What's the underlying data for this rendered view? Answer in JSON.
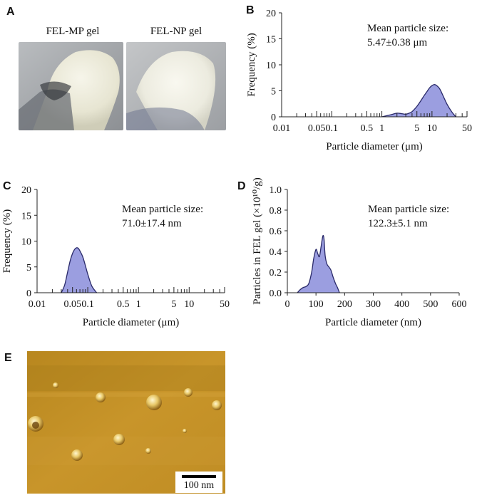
{
  "panels": {
    "A": {
      "letter": "A",
      "labels": [
        "FEL-MP gel",
        "FEL-NP gel"
      ]
    },
    "B": {
      "letter": "B",
      "annotation_line1": "Mean particle size:",
      "annotation_line2": "5.47±0.38 μm"
    },
    "C": {
      "letter": "C",
      "annotation_line1": "Mean particle size:",
      "annotation_line2": "71.0±17.4 nm"
    },
    "D": {
      "letter": "D",
      "annotation_line1": "Mean particle size:",
      "annotation_line2": "122.3±5.1 nm"
    },
    "E": {
      "letter": "E",
      "scale_bar": "100 nm"
    }
  },
  "colors": {
    "fill": "#9b9ee0",
    "line": "#2a2a6a"
  },
  "chart_data": [
    {
      "id": "B",
      "type": "area",
      "xscale": "log",
      "xlabel": "Particle diameter (μm)",
      "ylabel": "Frequency (%)",
      "xlim": [
        0.01,
        50
      ],
      "ylim": [
        0,
        20
      ],
      "x_ticks": [
        0.01,
        0.05,
        0.1,
        0.5,
        1,
        5,
        10,
        50
      ],
      "x_tick_labels": [
        "0.01",
        "0.05",
        "0.1",
        "0.5",
        "1",
        "5",
        "10",
        "50"
      ],
      "y_ticks": [
        0,
        5,
        10,
        15,
        20
      ],
      "y_tick_labels": [
        "0",
        "5",
        "10",
        "15",
        "20"
      ],
      "x": [
        1.0,
        1.5,
        2.0,
        2.5,
        3.0,
        3.5,
        4.0,
        5.0,
        6.0,
        7.0,
        8.0,
        9.0,
        10.0,
        11.0,
        12.0,
        14.0,
        16.0,
        20.0,
        25.0,
        30.0
      ],
      "y": [
        0,
        0.4,
        0.7,
        0.6,
        0.5,
        0.7,
        1.0,
        2.0,
        3.1,
        4.1,
        4.9,
        5.6,
        6.0,
        6.2,
        6.1,
        5.5,
        4.4,
        2.4,
        0.9,
        0
      ]
    },
    {
      "id": "C",
      "type": "area",
      "xscale": "log",
      "xlabel": "Particle diameter (μm)",
      "ylabel": "Frequency (%)",
      "xlim": [
        0.01,
        50
      ],
      "ylim": [
        0,
        20
      ],
      "x_ticks": [
        0.01,
        0.05,
        0.1,
        0.5,
        1,
        5,
        10,
        50
      ],
      "x_tick_labels": [
        "0.01",
        "0.05",
        "0.1",
        "0.5",
        "1",
        "5",
        "10",
        "50"
      ],
      "y_ticks": [
        0,
        5,
        10,
        15,
        20
      ],
      "y_tick_labels": [
        "0",
        "5",
        "10",
        "15",
        "20"
      ],
      "x": [
        0.03,
        0.035,
        0.04,
        0.045,
        0.05,
        0.055,
        0.06,
        0.065,
        0.07,
        0.08,
        0.09,
        0.1,
        0.12,
        0.15
      ],
      "y": [
        0,
        1.5,
        4.0,
        6.2,
        7.6,
        8.4,
        8.7,
        8.6,
        8.1,
        6.9,
        5.2,
        3.6,
        1.3,
        0
      ]
    },
    {
      "id": "D",
      "type": "area",
      "xscale": "linear",
      "xlabel": "Particle diameter (nm)",
      "ylabel": "Particles in FEL gel (×10¹⁰/g)",
      "xlim": [
        0,
        600
      ],
      "ylim": [
        0,
        1.0
      ],
      "x_ticks": [
        0,
        100,
        200,
        300,
        400,
        500,
        600
      ],
      "x_tick_labels": [
        "0",
        "100",
        "200",
        "300",
        "400",
        "500",
        "600"
      ],
      "y_ticks": [
        0,
        0.2,
        0.4,
        0.6,
        0.8,
        1.0
      ],
      "y_tick_labels": [
        "0.0",
        "0.2",
        "0.4",
        "0.6",
        "0.8",
        "1.0"
      ],
      "x": [
        35,
        45,
        55,
        65,
        75,
        85,
        92,
        100,
        106,
        112,
        118,
        124,
        128,
        132,
        138,
        145,
        152,
        160,
        168,
        175,
        182
      ],
      "y": [
        0,
        0.03,
        0.05,
        0.06,
        0.09,
        0.2,
        0.33,
        0.42,
        0.38,
        0.35,
        0.45,
        0.55,
        0.52,
        0.36,
        0.28,
        0.25,
        0.22,
        0.15,
        0.09,
        0.05,
        0
      ]
    }
  ]
}
